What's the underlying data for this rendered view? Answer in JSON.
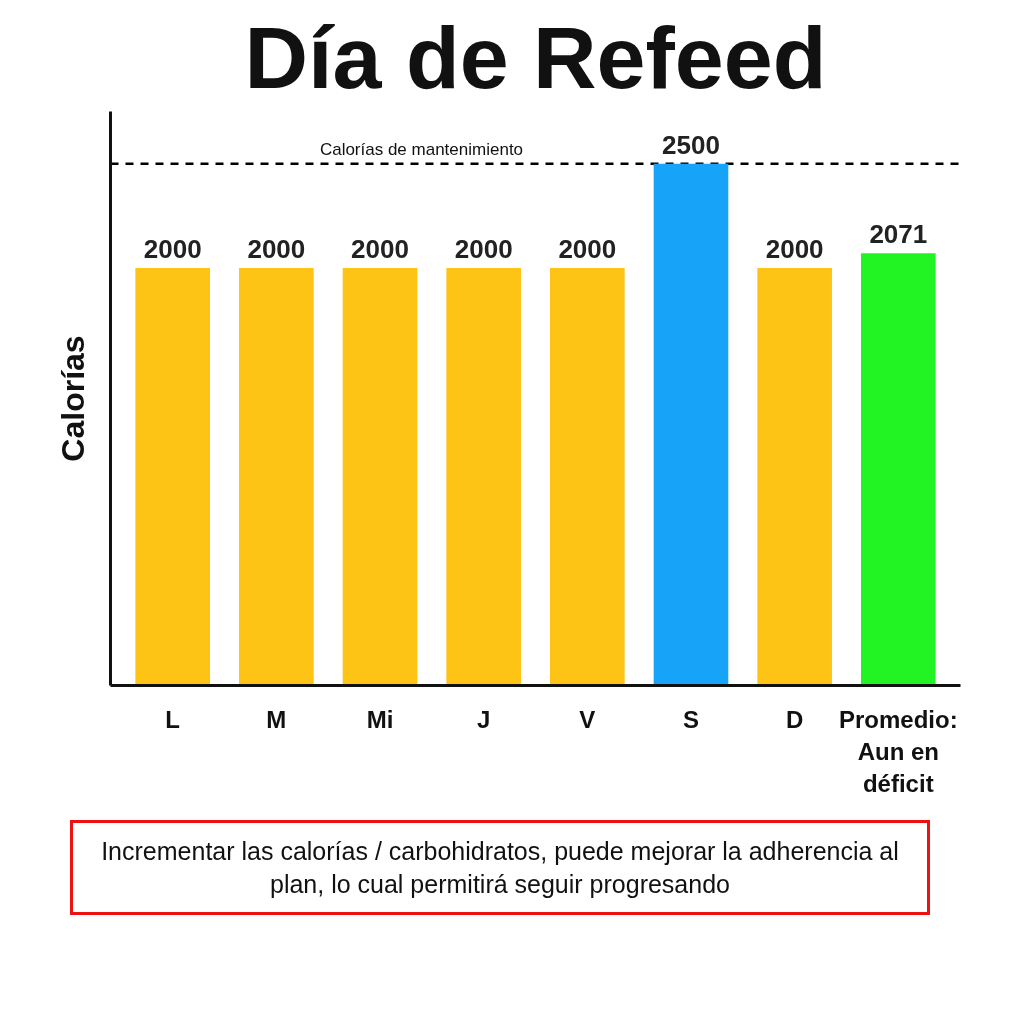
{
  "chart_data": {
    "type": "bar",
    "title": "Día de Refeed",
    "ylabel": "Calorías",
    "categories": [
      "L",
      "M",
      "Mi",
      "J",
      "V",
      "S",
      "D",
      "Promedio: Aun en déficit"
    ],
    "values": [
      2000,
      2000,
      2000,
      2000,
      2000,
      2500,
      2000,
      2071
    ],
    "colors": [
      "#fdc315",
      "#fdc315",
      "#fdc315",
      "#fdc315",
      "#fdc315",
      "#16a3f8",
      "#fdc315",
      "#22f322"
    ],
    "ylim": [
      0,
      2750
    ],
    "tick_labels": "x",
    "grid": false,
    "data_labels": true,
    "ref_lines": [
      {
        "axis": "y",
        "value": 2500,
        "label": "Calorías de mantenimiento",
        "color": "#000000",
        "line_style": "dashed"
      }
    ],
    "annotations": [
      "Incrementar las calorías / carbohidratos, puede mejorar la adherencia al plan, lo cual permitirá seguir progresando"
    ]
  }
}
